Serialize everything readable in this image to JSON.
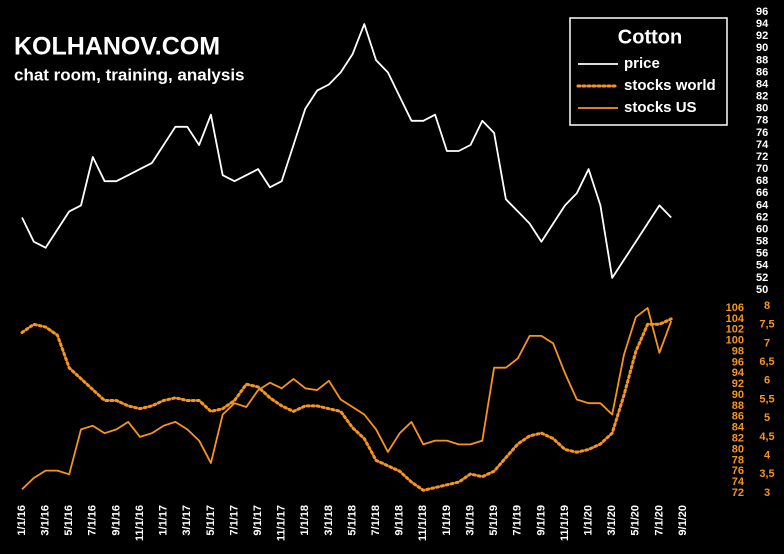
{
  "chart_data": {
    "type": "line",
    "title": "KOLHANOV.COM",
    "subtitle": "chat room, training, analysis",
    "legend_title": "Cotton",
    "x": [
      "1/1/16",
      "2/1/16",
      "3/1/16",
      "4/1/16",
      "5/1/16",
      "6/1/16",
      "7/1/16",
      "8/1/16",
      "9/1/16",
      "10/1/16",
      "11/1/16",
      "12/1/16",
      "1/1/17",
      "2/1/17",
      "3/1/17",
      "4/1/17",
      "5/1/17",
      "6/1/17",
      "7/1/17",
      "8/1/17",
      "9/1/17",
      "10/1/17",
      "11/1/17",
      "12/1/17",
      "1/1/18",
      "2/1/18",
      "3/1/18",
      "4/1/18",
      "5/1/18",
      "6/1/18",
      "7/1/18",
      "8/1/18",
      "9/1/18",
      "10/1/18",
      "11/1/18",
      "12/1/18",
      "1/1/19",
      "2/1/19",
      "3/1/19",
      "4/1/19",
      "5/1/19",
      "6/1/19",
      "7/1/19",
      "8/1/19",
      "9/1/19",
      "10/1/19",
      "11/1/19",
      "12/1/19",
      "1/1/20",
      "2/1/20",
      "3/1/20",
      "4/1/20",
      "5/1/20",
      "6/1/20",
      "7/1/20",
      "8/1/20"
    ],
    "xlim": [
      "1/1/16",
      "9/1/20"
    ],
    "xticks": [
      "1/1/16",
      "3/1/16",
      "5/1/16",
      "7/1/16",
      "9/1/16",
      "11/1/16",
      "1/1/17",
      "3/1/17",
      "5/1/17",
      "7/1/17",
      "9/1/17",
      "11/1/17",
      "1/1/18",
      "3/1/18",
      "5/1/18",
      "7/1/18",
      "9/1/18",
      "11/1/18",
      "1/1/19",
      "3/1/19",
      "5/1/19",
      "7/1/19",
      "9/1/19",
      "11/1/19",
      "1/1/20",
      "3/1/20",
      "5/1/20",
      "7/1/20",
      "9/1/20"
    ],
    "ylim": [
      50,
      96
    ],
    "yticks": [
      50,
      52,
      54,
      56,
      58,
      60,
      62,
      64,
      66,
      68,
      70,
      72,
      74,
      76,
      78,
      80,
      82,
      84,
      86,
      88,
      90,
      92,
      94,
      96
    ],
    "y2lim": [
      72,
      106
    ],
    "y2ticks": [
      72,
      74,
      76,
      78,
      80,
      82,
      84,
      86,
      88,
      90,
      92,
      94,
      96,
      98,
      100,
      102,
      104,
      106
    ],
    "y3lim": [
      3,
      8
    ],
    "y3ticks": [
      3,
      {
        "value": 3.5,
        "label": "3,5"
      },
      4,
      {
        "value": 4.5,
        "label": "4,5"
      },
      5,
      {
        "value": 5.5,
        "label": "5,5"
      },
      6,
      {
        "value": 6.5,
        "label": "6,5"
      },
      7,
      {
        "value": 7.5,
        "label": "7,5"
      },
      8
    ],
    "series": [
      {
        "name": "price",
        "color": "#ffffff",
        "dash": "solid",
        "axis": "y",
        "values": [
          62,
          58,
          57,
          60,
          63,
          64,
          72,
          68,
          68,
          69,
          70,
          71,
          74,
          77,
          77,
          74,
          79,
          69,
          68,
          69,
          70,
          67,
          68,
          74,
          80,
          83,
          84,
          86,
          89,
          94,
          88,
          86,
          82,
          78,
          78,
          79,
          73,
          73,
          74,
          78,
          76,
          65,
          63,
          61,
          58,
          61,
          64,
          66,
          70,
          64,
          52,
          55,
          58,
          61,
          64,
          62
        ]
      },
      {
        "name": "stocks world",
        "color": "#f7941d",
        "dash": "dotted",
        "axis": "y2",
        "values": [
          101.5,
          103,
          102.5,
          101,
          95,
          93,
          91,
          89,
          89,
          88,
          87.5,
          88,
          89,
          89.5,
          89,
          89,
          87,
          87.5,
          89,
          92,
          91.5,
          89.5,
          88,
          87,
          88,
          88,
          87.5,
          87,
          84,
          82,
          78,
          77,
          76,
          74,
          72.5,
          73,
          73.5,
          74,
          75.5,
          75,
          76,
          78.5,
          81,
          82.5,
          83,
          82,
          80,
          79.5,
          80,
          81,
          83,
          90,
          98,
          103,
          103,
          104
        ]
      },
      {
        "name": "stocks US",
        "color": "#f7941d",
        "dash": "solid",
        "axis": "y3",
        "values": [
          3.1,
          3.4,
          3.6,
          3.6,
          3.5,
          4.7,
          4.8,
          4.6,
          4.7,
          4.9,
          4.5,
          4.6,
          4.8,
          4.9,
          4.7,
          4.4,
          3.8,
          5.1,
          5.4,
          5.3,
          5.75,
          5.95,
          5.8,
          6.05,
          5.8,
          5.75,
          6,
          5.5,
          5.3,
          5.1,
          4.7,
          4.1,
          4.6,
          4.9,
          4.3,
          4.4,
          4.4,
          4.3,
          4.3,
          4.4,
          6.35,
          6.35,
          6.6,
          7.2,
          7.2,
          7,
          6.2,
          5.5,
          5.4,
          5.4,
          5.1,
          6.7,
          7.7,
          7.95,
          6.75,
          7.6
        ]
      }
    ]
  }
}
